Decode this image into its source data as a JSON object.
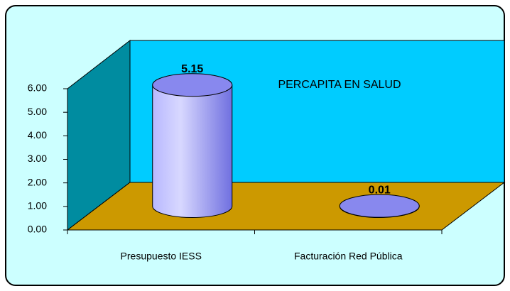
{
  "chart_data": {
    "type": "cylinder",
    "title": "PERCAPITA EN SALUD",
    "categories": [
      "Presupuesto IESS",
      "Facturación Red Pública"
    ],
    "values": [
      5.15,
      0.01
    ],
    "color": "#9999ff",
    "ylim": [
      0,
      6
    ],
    "yticks": [
      {
        "value": 0,
        "label": "0.00"
      },
      {
        "value": 1,
        "label": "1.00"
      },
      {
        "value": 2,
        "label": "2.00"
      },
      {
        "value": 3,
        "label": "3.00"
      },
      {
        "value": 4,
        "label": "4.00"
      },
      {
        "value": 5,
        "label": "5.00"
      },
      {
        "value": 6,
        "label": "6.00"
      }
    ],
    "grid": false
  }
}
